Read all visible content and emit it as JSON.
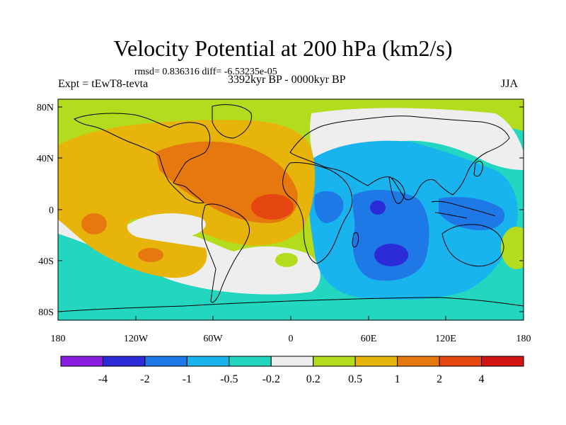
{
  "title": "Velocity Potential at 200 hPa (km2/s)",
  "stats": "rmsd= 0.836316 diff= -6.53235e-05",
  "experiment": "Expt = tEwT8-tevta",
  "period": "3392kyr BP - 0000kyr BP",
  "season": "JJA",
  "axes": {
    "x_ticks": [
      "180",
      "120W",
      "60W",
      "0",
      "60E",
      "120E",
      "180"
    ],
    "y_ticks": [
      "80N",
      "40N",
      "0",
      "40S",
      "80S"
    ]
  },
  "colorbar": {
    "labels": [
      "-4",
      "-2",
      "-1",
      "-0.5",
      "-0.2",
      "0.2",
      "0.5",
      "1",
      "2",
      "4"
    ],
    "colors": [
      "#8a1ee0",
      "#2b2bd8",
      "#1e78e6",
      "#19b4ee",
      "#22d6c0",
      "#eeeeee",
      "#b4dc1e",
      "#e6b40a",
      "#e6780f",
      "#e6460f",
      "#d21414"
    ]
  },
  "palette": {
    "land_outline": "#000000",
    "map_background": "#b4dc1e"
  }
}
